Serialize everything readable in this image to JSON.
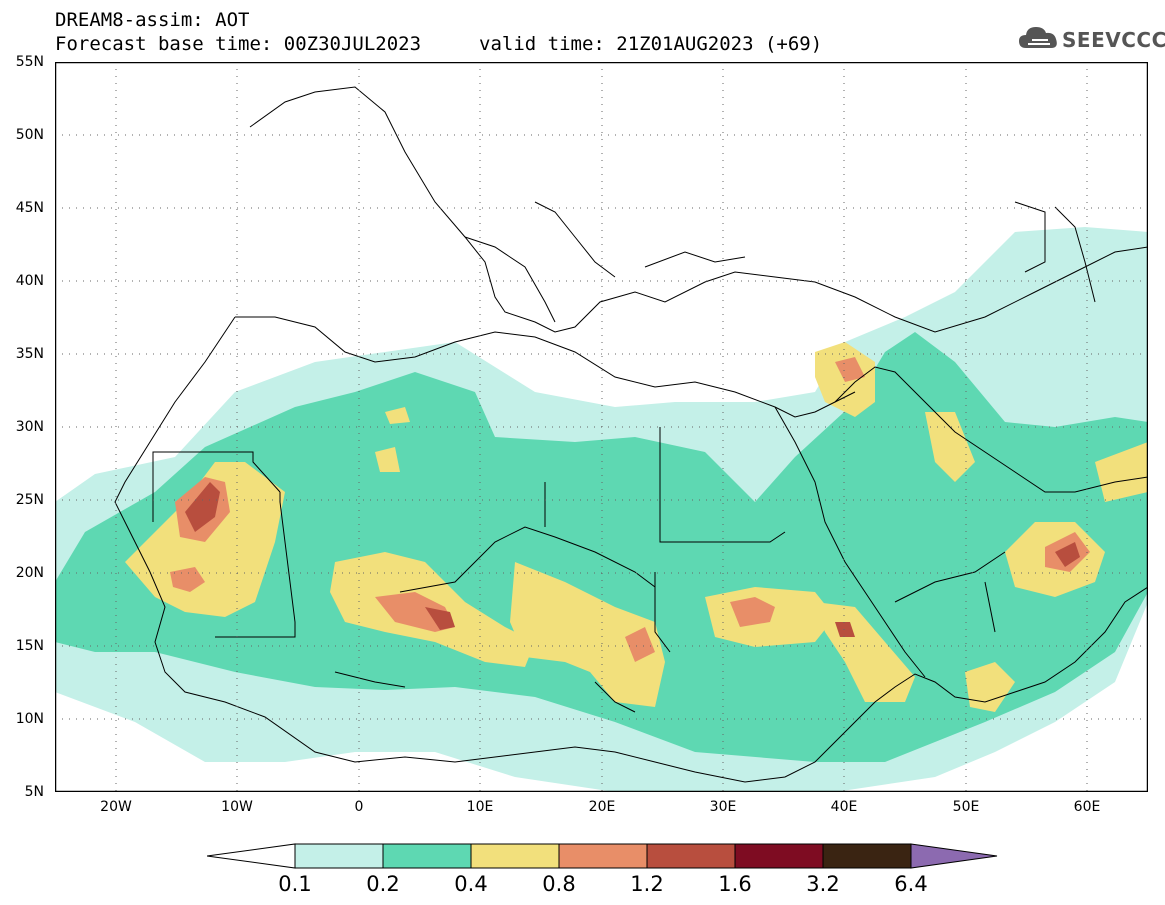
{
  "header": {
    "line1": "DREAM8-assim: AOT",
    "base_time": "Forecast base time: 00Z30JUL2023",
    "valid_time": "valid time: 21Z01AUG2023 (+69)"
  },
  "logo": {
    "text": "SEEVCCC",
    "icon": "cloud-icon"
  },
  "map": {
    "lat_labels": [
      "55N",
      "50N",
      "45N",
      "40N",
      "35N",
      "30N",
      "25N",
      "20N",
      "15N",
      "10N",
      "5N"
    ],
    "lon_labels": [
      "20W",
      "10W",
      "0",
      "10E",
      "20E",
      "30E",
      "40E",
      "50E",
      "60E"
    ],
    "extent": {
      "lon": [
        -25,
        65
      ],
      "lat": [
        5,
        55
      ]
    },
    "field": "AOT",
    "land_color": "#ffffff",
    "boundary_color": "#000000"
  },
  "colorbar": {
    "labels": [
      "0.1",
      "0.2",
      "0.4",
      "0.8",
      "1.2",
      "1.6",
      "3.2",
      "6.4"
    ],
    "colors": {
      "below": "#ffffff",
      "c0": "#c4f0e8",
      "c1": "#5ed8b2",
      "c2": "#f2e07c",
      "c3": "#e88e68",
      "c4": "#b84e3e",
      "c5": "#7e0c22",
      "c6": "#3a2412",
      "above": "#8c6ab0"
    }
  }
}
